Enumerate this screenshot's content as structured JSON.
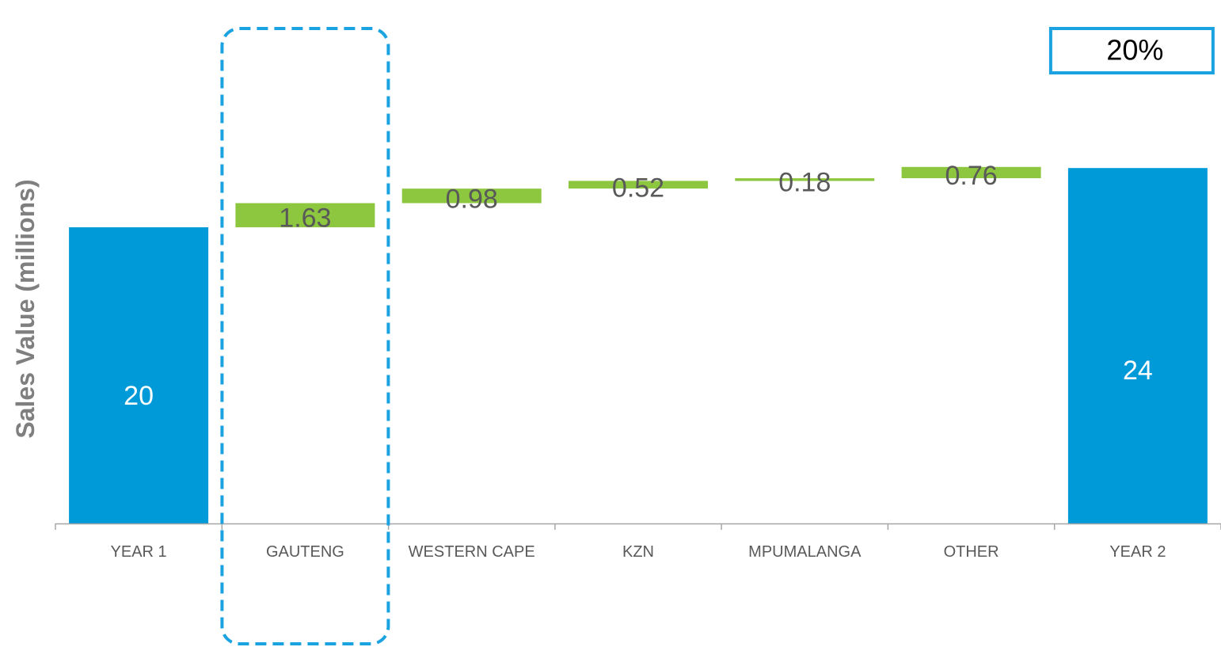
{
  "chart_data": {
    "type": "bar",
    "subtype": "waterfall",
    "title": "",
    "xlabel": "",
    "ylabel": "Sales Value (millions)",
    "categories": [
      "YEAR 1",
      "GAUTENG",
      "WESTERN CAPE",
      "KZN",
      "MPUMALANGA",
      "OTHER",
      "YEAR 2"
    ],
    "values": [
      20,
      1.63,
      0.98,
      0.52,
      0.18,
      0.76,
      24
    ],
    "bar_kinds": [
      "total",
      "increase",
      "increase",
      "increase",
      "increase",
      "increase",
      "total"
    ],
    "value_labels": [
      "20",
      "1.63",
      "0.98",
      "0.52",
      "0.18",
      "0.76",
      "24"
    ],
    "ylim": [
      0,
      28.5
    ],
    "grid": false,
    "legend": "none",
    "highlight_category": "GAUTENG",
    "annotation": {
      "text": "20%",
      "anchor_category": "YEAR 2"
    },
    "colors": {
      "total": "#009ad8",
      "increase": "#8dc63f",
      "total_label": "#ffffff",
      "increase_label": "#595959",
      "highlight": "#1aa3e0",
      "axis": "#a6a6a6"
    }
  }
}
